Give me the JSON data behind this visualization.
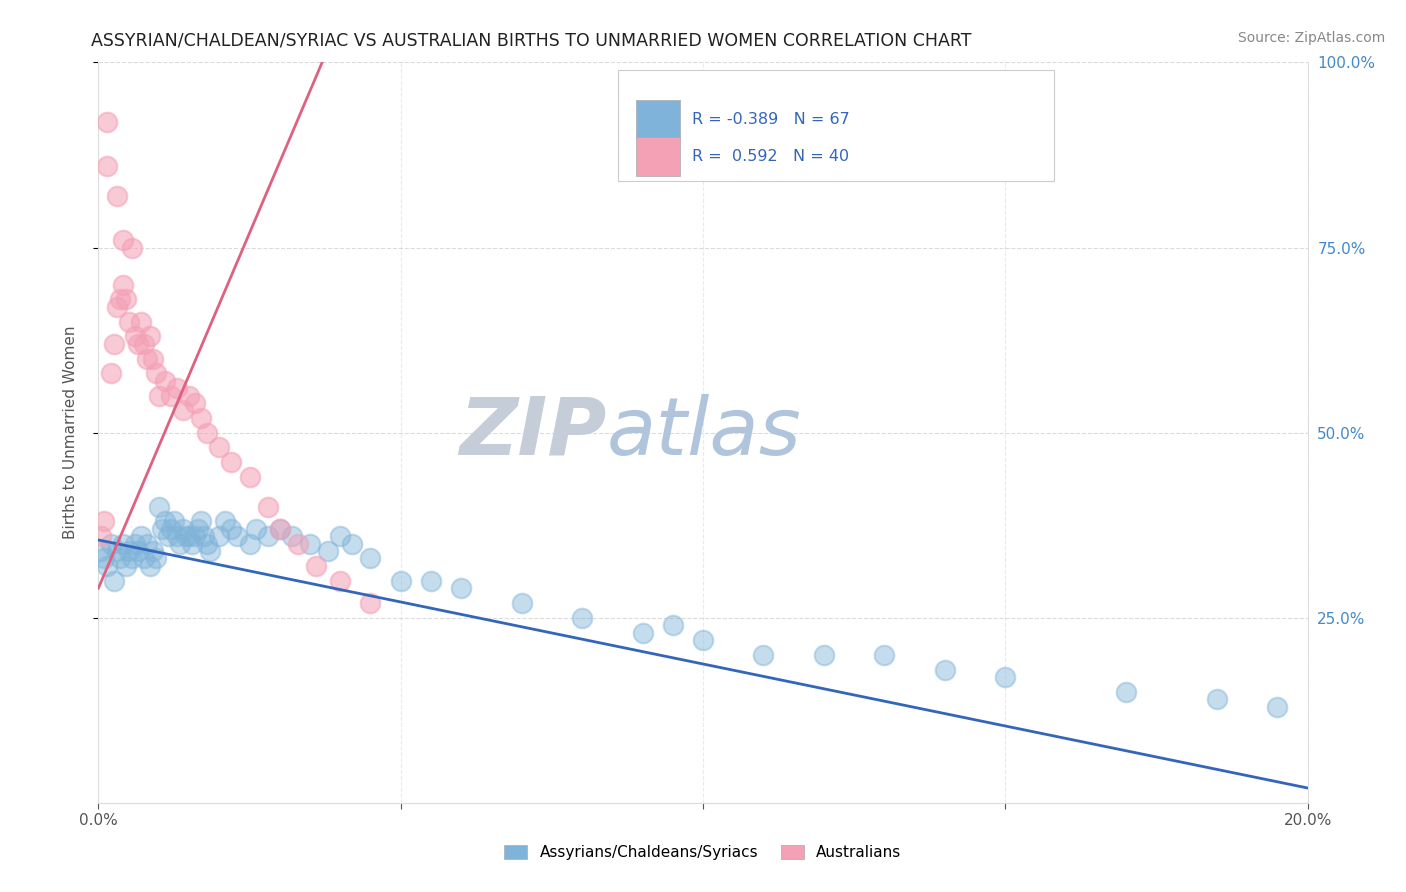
{
  "title": "ASSYRIAN/CHALDEAN/SYRIAC VS AUSTRALIAN BIRTHS TO UNMARRIED WOMEN CORRELATION CHART",
  "source": "Source: ZipAtlas.com",
  "ylabel": "Births to Unmarried Women",
  "xlim": [
    0.0,
    20.0
  ],
  "ylim": [
    0.0,
    100.0
  ],
  "legend_blue_label": "Assyrians/Chaldeans/Syriacs",
  "legend_pink_label": "Australians",
  "R_blue": -0.389,
  "N_blue": 67,
  "R_pink": 0.592,
  "N_pink": 40,
  "blue_color": "#7fb3d9",
  "pink_color": "#f4a0b5",
  "blue_line_color": "#3366bb",
  "pink_line_color": "#e06080",
  "watermark_zip_color": "#c8d5e5",
  "watermark_atlas_color": "#b0c8e0",
  "title_fontsize": 12.5,
  "blue_scatter_x": [
    0.05,
    0.1,
    0.15,
    0.2,
    0.25,
    0.3,
    0.35,
    0.4,
    0.45,
    0.5,
    0.55,
    0.6,
    0.65,
    0.7,
    0.75,
    0.8,
    0.85,
    0.9,
    0.95,
    1.0,
    1.05,
    1.1,
    1.15,
    1.2,
    1.25,
    1.3,
    1.35,
    1.4,
    1.45,
    1.5,
    1.55,
    1.6,
    1.65,
    1.7,
    1.75,
    1.8,
    1.85,
    2.0,
    2.1,
    2.2,
    2.3,
    2.5,
    2.6,
    2.8,
    3.0,
    3.2,
    3.5,
    3.8,
    4.0,
    4.2,
    4.5,
    5.0,
    5.5,
    6.0,
    7.0,
    8.0,
    9.0,
    10.0,
    11.0,
    12.0,
    13.0,
    14.0,
    15.0,
    17.0,
    18.5,
    19.5,
    9.5
  ],
  "blue_scatter_y": [
    34,
    33,
    32,
    35,
    30,
    34,
    33,
    35,
    32,
    34,
    33,
    35,
    34,
    36,
    33,
    35,
    32,
    34,
    33,
    40,
    37,
    38,
    36,
    37,
    38,
    36,
    35,
    37,
    36,
    36,
    35,
    36,
    37,
    38,
    36,
    35,
    34,
    36,
    38,
    37,
    36,
    35,
    37,
    36,
    37,
    36,
    35,
    34,
    36,
    35,
    33,
    30,
    30,
    29,
    27,
    25,
    23,
    22,
    20,
    20,
    20,
    18,
    17,
    15,
    14,
    13,
    24
  ],
  "pink_scatter_x": [
    0.05,
    0.1,
    0.15,
    0.2,
    0.25,
    0.3,
    0.35,
    0.4,
    0.45,
    0.5,
    0.6,
    0.65,
    0.7,
    0.75,
    0.8,
    0.85,
    0.9,
    0.95,
    1.0,
    1.1,
    1.2,
    1.3,
    1.4,
    1.5,
    1.6,
    1.7,
    1.8,
    2.0,
    2.2,
    2.5,
    2.8,
    3.0,
    3.3,
    3.6,
    4.0,
    4.5,
    0.55,
    0.3,
    0.4,
    0.15
  ],
  "pink_scatter_y": [
    36,
    38,
    92,
    58,
    62,
    67,
    68,
    70,
    68,
    65,
    63,
    62,
    65,
    62,
    60,
    63,
    60,
    58,
    55,
    57,
    55,
    56,
    53,
    55,
    54,
    52,
    50,
    48,
    46,
    44,
    40,
    37,
    35,
    32,
    30,
    27,
    75,
    82,
    76,
    86
  ],
  "blue_line_x0": 0.0,
  "blue_line_y0": 35.5,
  "blue_line_x1": 20.0,
  "blue_line_y1": 2.0,
  "pink_line_x0": 0.0,
  "pink_line_y0": 29.0,
  "pink_line_x1": 3.7,
  "pink_line_y1": 100.0
}
